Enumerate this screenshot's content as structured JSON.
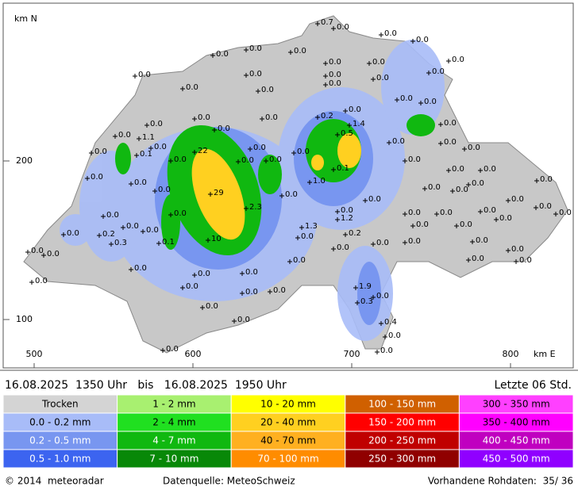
{
  "map": {
    "y_axis_label": "km N",
    "x_axis_label": "km E",
    "y_ticks": [
      200,
      100
    ],
    "x_ticks": [
      500,
      600,
      700,
      800
    ],
    "stations": [
      "0.7",
      "0.0",
      "0.0",
      "0.0",
      "0.0",
      "0.0",
      "0.0",
      "0.0",
      "0.0",
      "0.0",
      "0.0",
      "0.0",
      "0.0",
      "0.0",
      "0.0",
      "0.0",
      "0.0",
      "0.0",
      "0.0",
      "0.0",
      "0.0",
      "0.0",
      "0.0",
      "0.0",
      "0.2",
      "1.4",
      "0.5",
      "0.0",
      "0.0",
      "1.1",
      "0.0",
      "0.0",
      "0.1",
      "22",
      "0.0",
      "0.0",
      "0.0",
      "0.0",
      "0.0",
      "0.0",
      "0.0",
      "0.0",
      "0.0",
      "0.1",
      "0.0",
      "0.0",
      "0.0",
      "0.0",
      "0.0",
      "29",
      "0.0",
      "1.0",
      "0.0",
      "0.0",
      "0.0",
      "0.0",
      "0.0",
      "0.0",
      "0.0",
      "0.0",
      "0.0",
      "2.3",
      "0.0",
      "0.0",
      "0.0",
      "1.2",
      "0.0",
      "0.0",
      "0.0",
      "0.0",
      "0.2",
      "0.0",
      "0.0",
      "1.3",
      "0.2",
      "0.0",
      "0.0",
      "0.0",
      "0.0",
      "0.1",
      "0.3",
      "10",
      "0.0",
      "0.0",
      "0.0",
      "0.0",
      "0.0",
      "0.0",
      "0.0",
      "0.0",
      "0.0",
      "0.0",
      "0.0",
      "0.0",
      "0.0",
      "0.0",
      "1.9",
      "0.3",
      "0.0",
      "0.0",
      "0.0",
      "0.0",
      "0.0",
      "0.0",
      "0.4",
      "0.0",
      "0.0",
      "0.0"
    ]
  },
  "header": {
    "period": "16.08.2025  1350 Uhr   bis   16.08.2025  1950 Uhr",
    "window": "Letzte 06 Std."
  },
  "legend": {
    "columns": [
      [
        "Trocken",
        "0.0 - 0.2 mm",
        "0.2 - 0.5 mm",
        "0.5 - 1.0 mm"
      ],
      [
        "1 - 2 mm",
        "2 - 4 mm",
        "4 - 7 mm",
        "7 - 10 mm"
      ],
      [
        "10 - 20 mm",
        "20 - 40 mm",
        "40 - 70 mm",
        "70 - 100 mm"
      ],
      [
        "100 - 150 mm",
        "150 - 200 mm",
        "200 - 250 mm",
        "250 - 300 mm"
      ],
      [
        "300 - 350 mm",
        "350 - 400 mm",
        "400 - 450 mm",
        "450 - 500 mm"
      ]
    ],
    "colors": [
      [
        "#d4d4d4",
        "#a8bcf8",
        "#7896f0",
        "#3c64f0"
      ],
      [
        "#a8f070",
        "#20e020",
        "#10b810",
        "#088808"
      ],
      [
        "#ffff00",
        "#ffd020",
        "#ffb020",
        "#ff8c00"
      ],
      [
        "#d06000",
        "#ff0000",
        "#c00000",
        "#900000"
      ],
      [
        "#ff40ff",
        "#ff00ff",
        "#c000c0",
        "#9000ff"
      ]
    ]
  },
  "footer": {
    "copyright": "© 2014  meteoradar",
    "source": "Datenquelle: MeteoSchweiz",
    "raw_data": "Vorhandene Rohdaten:  35/ 36"
  }
}
